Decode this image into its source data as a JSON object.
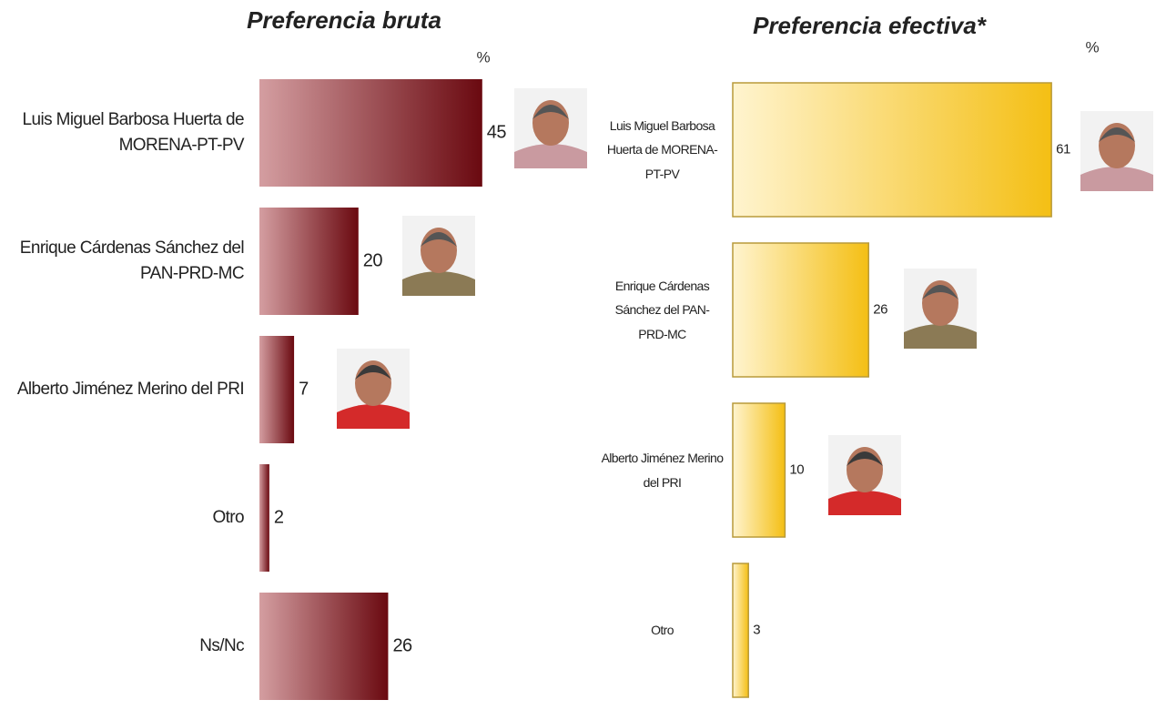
{
  "chart_data": [
    {
      "type": "bar",
      "orientation": "horizontal",
      "title": "Preferencia bruta",
      "unit": "%",
      "categories": [
        "Luis Miguel Barbosa Huerta de MORENA-PT-PV",
        "Enrique Cárdenas Sánchez del PAN-PRD-MC",
        "Alberto Jiménez Merino del PRI",
        "Otro",
        "Ns/Nc"
      ],
      "values": [
        45,
        20,
        7,
        2,
        26
      ],
      "colors": [
        "#d49ea1",
        "#6a0910"
      ]
    },
    {
      "type": "bar",
      "orientation": "horizontal",
      "title": "Preferencia efectiva*",
      "unit": "%",
      "categories": [
        "Luis Miguel Barbosa Huerta de MORENA-PT-PV",
        "Enrique Cárdenas Sánchez del PAN-PRD-MC",
        "Alberto Jiménez Merino del PRI",
        "Otro"
      ],
      "values": [
        61,
        26,
        10,
        3
      ],
      "colors": [
        "#fff4cf",
        "#f4bf14"
      ]
    }
  ]
}
